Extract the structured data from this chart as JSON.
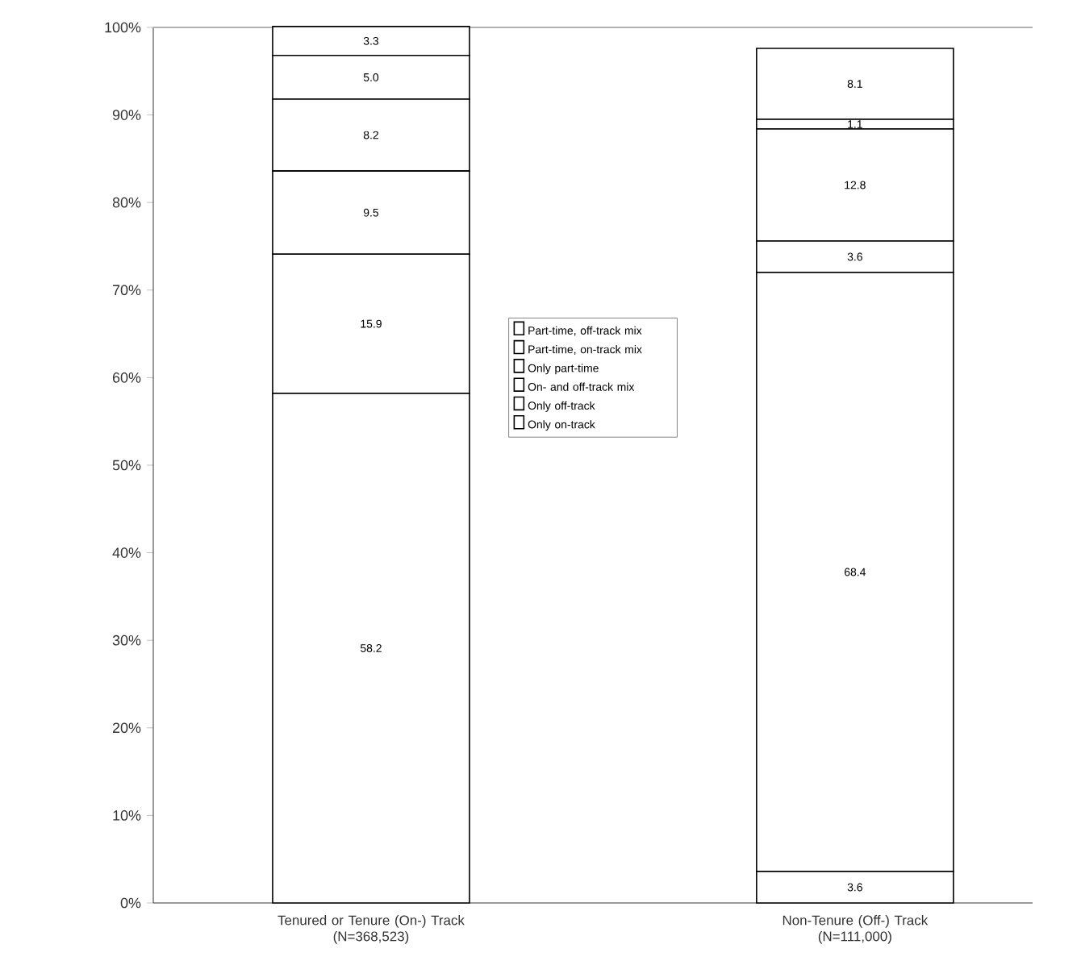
{
  "chart_data": {
    "type": "bar",
    "stacked": true,
    "categories": [
      "Tenured or Tenure (On-) Track\n(N=368,523)",
      "Non-Tenure (Off-) Track\n(N=111,000)"
    ],
    "series": [
      {
        "name": "Only on-track",
        "color": "#ffffff",
        "values": [
          58.2,
          3.6
        ],
        "value_labels": [
          "58.2",
          "3.6"
        ]
      },
      {
        "name": "Only off-track",
        "color": "#ffffff",
        "values": [
          15.9,
          68.4
        ],
        "value_labels": [
          "15.9",
          "68.4"
        ]
      },
      {
        "name": "On- and off-track mix",
        "color": "#ffffff",
        "values": [
          9.5,
          3.6
        ],
        "value_labels": [
          "9.5",
          "3.6"
        ]
      },
      {
        "name": "Only part-time",
        "color": "#ffffff",
        "values": [
          8.2,
          12.8
        ],
        "value_labels": [
          "8.2",
          "12.8"
        ]
      },
      {
        "name": "Part-time, on-track mix",
        "color": "#ffffff",
        "values": [
          5.0,
          1.1
        ],
        "value_labels": [
          "5.0",
          "1.1"
        ]
      },
      {
        "name": "Part-time, off-track mix",
        "color": "#ffffff",
        "values": [
          3.3,
          8.1
        ],
        "value_labels": [
          "3.3",
          "8.1"
        ]
      }
    ],
    "ylim": [
      0,
      100
    ],
    "yticks": [
      {
        "value": 0,
        "label": "0%"
      },
      {
        "value": 10,
        "label": "10%"
      },
      {
        "value": 20,
        "label": "20%"
      },
      {
        "value": 30,
        "label": "30%"
      },
      {
        "value": 40,
        "label": "40%"
      },
      {
        "value": 50,
        "label": "50%"
      },
      {
        "value": 60,
        "label": "60%"
      },
      {
        "value": 70,
        "label": "70%"
      },
      {
        "value": 80,
        "label": "80%"
      },
      {
        "value": 90,
        "label": "90%"
      },
      {
        "value": 100,
        "label": "100%"
      }
    ],
    "legend": "center"
  }
}
